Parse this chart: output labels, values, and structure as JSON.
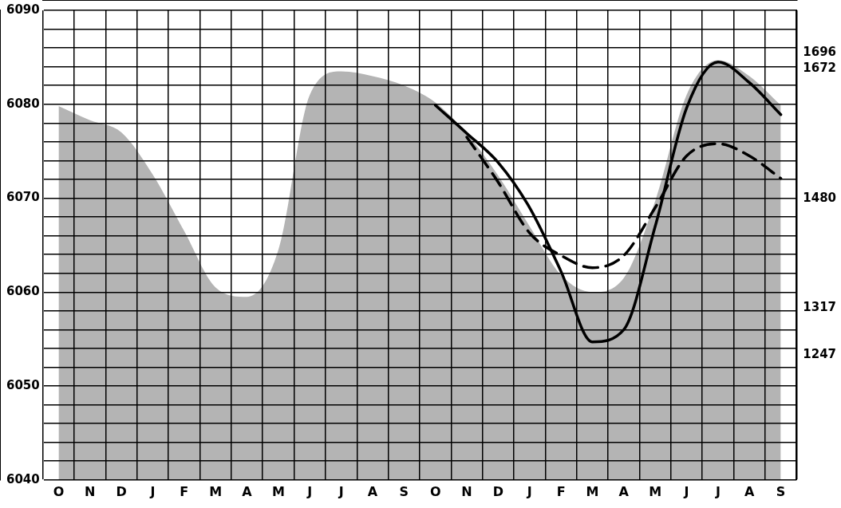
{
  "chart_data": {
    "type": "line",
    "categories": [
      "O",
      "N",
      "D",
      "J",
      "F",
      "M",
      "A",
      "M",
      "J",
      "J",
      "A",
      "S",
      "O",
      "N",
      "D",
      "J",
      "F",
      "M",
      "A",
      "M",
      "J",
      "J",
      "A",
      "S"
    ],
    "series": [
      {
        "type": "area",
        "color": "#b4b4b4",
        "values": [
          6079.8,
          6078.3,
          6077,
          6072.5,
          6066.5,
          6060.5,
          6059.5,
          6064.5,
          6081,
          6083.5,
          6083,
          6082,
          6080.2,
          6076.9,
          6072.4,
          6067,
          6061.8,
          6060,
          6061.5,
          6069.7,
          6081,
          6084.7,
          6083,
          6079.9
        ]
      },
      {
        "type": "line",
        "color": "#000000",
        "line_style": "solid",
        "values": [
          null,
          null,
          null,
          null,
          null,
          null,
          null,
          null,
          null,
          null,
          null,
          null,
          6079.9,
          6076.9,
          6073.8,
          6069,
          6062.2,
          6054.7,
          6056,
          6067,
          6079.6,
          6084.5,
          6082.3,
          6078.9
        ]
      },
      {
        "type": "line",
        "color": "#000000",
        "line_style": "dashed",
        "values": [
          null,
          null,
          null,
          null,
          null,
          null,
          null,
          null,
          null,
          null,
          null,
          null,
          null,
          6076.5,
          6071.7,
          6066.3,
          6063.9,
          6062.6,
          6063.9,
          6069,
          6074.5,
          6075.8,
          6074.5,
          6072.1
        ]
      }
    ],
    "ylim": [
      6040,
      6090
    ],
    "yticks": [
      6040,
      {
        "value": 6042,
        "label": null
      },
      {
        "value": 6044,
        "label": null
      },
      {
        "value": 6046,
        "label": null
      },
      {
        "value": 6048,
        "label": null
      },
      6050,
      {
        "value": 6052,
        "label": null
      },
      {
        "value": 6054,
        "label": null
      },
      {
        "value": 6056,
        "label": null
      },
      {
        "value": 6058,
        "label": null
      },
      6060,
      {
        "value": 6062,
        "label": null
      },
      {
        "value": 6064,
        "label": null
      },
      {
        "value": 6066,
        "label": null
      },
      {
        "value": 6068,
        "label": null
      },
      6070,
      {
        "value": 6072,
        "label": null
      },
      {
        "value": 6074,
        "label": null
      },
      {
        "value": 6076,
        "label": null
      },
      {
        "value": 6078,
        "label": null
      },
      6080,
      {
        "value": 6082,
        "label": null
      },
      {
        "value": 6084,
        "label": null
      },
      {
        "value": 6086,
        "label": null
      },
      {
        "value": 6088,
        "label": null
      },
      6090
    ],
    "y2lim": [
      1062,
      1759
    ],
    "y2ticks": [
      1696,
      1672,
      1480,
      1317,
      1247
    ],
    "grid": true,
    "legend": false,
    "marker": "none"
  }
}
